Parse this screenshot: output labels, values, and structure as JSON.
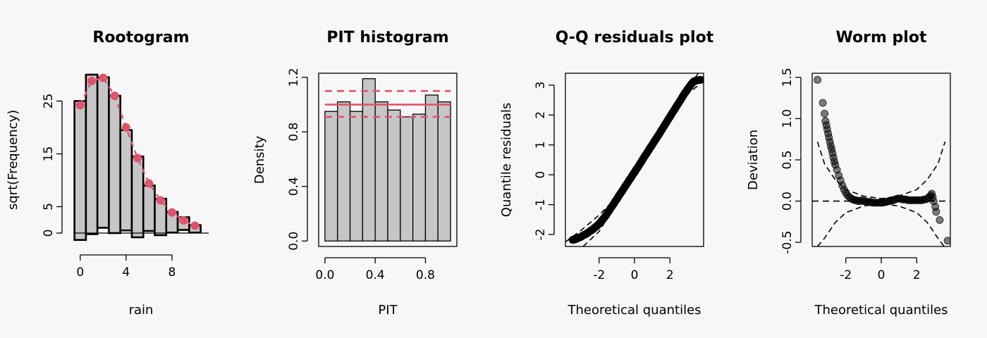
{
  "colors": {
    "background": "#f7f7f7",
    "bar_fill": "#c6c6c6",
    "accent": "#df536b",
    "points": "#000000"
  },
  "chart_data": [
    {
      "type": "bar",
      "title": "Rootogram",
      "xlabel": "rain",
      "ylabel": "sqrt(Frequency)",
      "xlim": [
        -0.6,
        11.2
      ],
      "ylim": [
        -2,
        30
      ],
      "xticks": [
        0,
        4,
        8
      ],
      "yticks": [
        0,
        5,
        15,
        25
      ],
      "x": [
        0,
        1,
        2,
        3,
        4,
        5,
        6,
        7,
        8,
        9,
        10
      ],
      "observed_sqrt": [
        25,
        30,
        29.5,
        26,
        19.5,
        14.5,
        9,
        6.5,
        4,
        3,
        1.5
      ],
      "expected_sqrt": [
        24.2,
        28.8,
        29.4,
        26,
        20,
        14.2,
        9.4,
        6.2,
        3.9,
        2.4,
        1.4
      ],
      "bottom": [
        -1.3,
        -0.2,
        1,
        0,
        0.5,
        -0.8,
        0.4,
        -0.4,
        0.1,
        0.6,
        0.1
      ]
    },
    {
      "type": "bar",
      "title": "PIT histogram",
      "xlabel": "PIT",
      "ylabel": "Density",
      "xlim": [
        -0.05,
        1.05
      ],
      "ylim": [
        -0.04,
        1.23
      ],
      "xticks": [
        "0.0",
        "0.4",
        "0.8"
      ],
      "xtick_values": [
        0,
        0.4,
        0.8
      ],
      "yticks": [
        "0.0",
        "0.4",
        "0.8",
        "1.2"
      ],
      "ytick_values": [
        0,
        0.4,
        0.8,
        1.2
      ],
      "bins": [
        0,
        0.1,
        0.2,
        0.3,
        0.4,
        0.5,
        0.6,
        0.7,
        0.8,
        0.9,
        1.0
      ],
      "density": [
        0.95,
        1.02,
        0.95,
        1.19,
        1.02,
        0.96,
        0.91,
        0.93,
        1.07,
        1.02
      ],
      "reference": 1.0,
      "interval": [
        0.91,
        1.1
      ]
    },
    {
      "type": "scatter",
      "title": "Q-Q residuals plot",
      "xlabel": "Theoretical quantiles",
      "ylabel": "Quantile residuals",
      "xlim": [
        -3.9,
        3.9
      ],
      "ylim": [
        -2.4,
        3.4
      ],
      "xticks": [
        -2,
        0,
        2
      ],
      "yticks": [
        -2,
        -1,
        0,
        1,
        2,
        3
      ],
      "points": [
        [
          -3.5,
          -2.18
        ],
        [
          -3.4,
          -2.17
        ],
        [
          -3.3,
          -2.15
        ],
        [
          -3.2,
          -2.12
        ],
        [
          -3.1,
          -2.1
        ],
        [
          -3.0,
          -2.07
        ],
        [
          -2.9,
          -2.03
        ],
        [
          -2.8,
          -2.0
        ],
        [
          -2.7,
          -1.97
        ],
        [
          -2.6,
          -1.93
        ],
        [
          -2.5,
          -1.88
        ],
        [
          -2.4,
          -1.85
        ],
        [
          -2.3,
          -1.8
        ],
        [
          -2.2,
          -1.75
        ],
        [
          -2.1,
          -1.7
        ],
        [
          -2.0,
          -1.64
        ],
        [
          -1.9,
          -1.58
        ],
        [
          -1.8,
          -1.5
        ],
        [
          -1.7,
          -1.43
        ],
        [
          -1.6,
          -1.35
        ],
        [
          -1.5,
          -1.26
        ],
        [
          -1.4,
          -1.17
        ],
        [
          -1.3,
          -1.08
        ],
        [
          -1.2,
          -1.0
        ],
        [
          -1.1,
          -0.9
        ],
        [
          -1.0,
          -0.82
        ],
        [
          -0.9,
          -0.72
        ],
        [
          -0.8,
          -0.63
        ],
        [
          -0.7,
          -0.55
        ],
        [
          -0.6,
          -0.46
        ],
        [
          -0.5,
          -0.36
        ],
        [
          -0.4,
          -0.28
        ],
        [
          -0.3,
          -0.18
        ],
        [
          -0.2,
          -0.1
        ],
        [
          -0.1,
          0.0
        ],
        [
          0.0,
          0.08
        ],
        [
          0.1,
          0.18
        ],
        [
          0.2,
          0.26
        ],
        [
          0.3,
          0.36
        ],
        [
          0.4,
          0.45
        ],
        [
          0.5,
          0.55
        ],
        [
          0.6,
          0.64
        ],
        [
          0.7,
          0.73
        ],
        [
          0.8,
          0.82
        ],
        [
          0.9,
          0.92
        ],
        [
          1.0,
          1.0
        ],
        [
          1.1,
          1.1
        ],
        [
          1.2,
          1.19
        ],
        [
          1.3,
          1.28
        ],
        [
          1.4,
          1.37
        ],
        [
          1.5,
          1.47
        ],
        [
          1.6,
          1.56
        ],
        [
          1.7,
          1.66
        ],
        [
          1.8,
          1.75
        ],
        [
          1.9,
          1.85
        ],
        [
          2.0,
          1.94
        ],
        [
          2.1,
          2.04
        ],
        [
          2.2,
          2.13
        ],
        [
          2.3,
          2.22
        ],
        [
          2.4,
          2.32
        ],
        [
          2.5,
          2.41
        ],
        [
          2.6,
          2.5
        ],
        [
          2.7,
          2.6
        ],
        [
          2.8,
          2.7
        ],
        [
          2.9,
          2.78
        ],
        [
          3.0,
          2.87
        ],
        [
          3.1,
          2.95
        ],
        [
          3.2,
          3.03
        ],
        [
          3.3,
          3.1
        ],
        [
          3.4,
          3.14
        ],
        [
          3.6,
          3.17
        ],
        [
          3.75,
          3.18
        ]
      ],
      "band_upper": [
        [
          -3.9,
          -2.25
        ],
        [
          -3.0,
          -1.85
        ],
        [
          -2.0,
          -1.35
        ],
        [
          -1.0,
          -0.75
        ],
        [
          0,
          0.1
        ],
        [
          1.0,
          1.0
        ],
        [
          2.0,
          1.95
        ],
        [
          3.0,
          2.9
        ],
        [
          3.6,
          3.4
        ]
      ],
      "band_lower": [
        [
          -2.9,
          -2.4
        ],
        [
          -2.0,
          -1.9
        ],
        [
          -1.0,
          -0.95
        ],
        [
          0,
          -0.05
        ],
        [
          1.0,
          0.85
        ],
        [
          2.0,
          1.8
        ],
        [
          3.0,
          2.7
        ],
        [
          3.5,
          2.95
        ],
        [
          3.7,
          2.95
        ]
      ]
    },
    {
      "type": "scatter",
      "title": "Worm plot",
      "xlabel": "Theoretical quantiles",
      "ylabel": "Deviation",
      "xlim": [
        -3.9,
        3.9
      ],
      "ylim": [
        -0.55,
        1.55
      ],
      "xticks": [
        -2,
        0,
        2
      ],
      "yticks": [
        "-0.5",
        "0.0",
        "0.5",
        "1.0",
        "1.5"
      ],
      "ytick_values": [
        -0.5,
        0,
        0.5,
        1.0,
        1.5
      ],
      "reference": 0,
      "points": [
        [
          -3.6,
          1.47
        ],
        [
          -3.3,
          1.19
        ],
        [
          -3.2,
          1.06
        ],
        [
          -3.15,
          0.97
        ],
        [
          -3.1,
          0.92
        ],
        [
          -3.05,
          0.87
        ],
        [
          -3.0,
          0.82
        ],
        [
          -2.95,
          0.77
        ],
        [
          -2.9,
          0.72
        ],
        [
          -2.85,
          0.67
        ],
        [
          -2.8,
          0.63
        ],
        [
          -2.75,
          0.58
        ],
        [
          -2.7,
          0.53
        ],
        [
          -2.65,
          0.48
        ],
        [
          -2.6,
          0.44
        ],
        [
          -2.5,
          0.38
        ],
        [
          -2.4,
          0.31
        ],
        [
          -2.3,
          0.25
        ],
        [
          -2.2,
          0.19
        ],
        [
          -2.1,
          0.14
        ],
        [
          -2.0,
          0.1
        ],
        [
          -1.9,
          0.07
        ],
        [
          -1.8,
          0.05
        ],
        [
          -1.7,
          0.03
        ],
        [
          -1.6,
          0.02
        ],
        [
          -1.5,
          0.01
        ],
        [
          -1.4,
          0.01
        ],
        [
          -1.3,
          0.0
        ],
        [
          -1.2,
          0.0
        ],
        [
          -1.1,
          0.01
        ],
        [
          -1.0,
          0.0
        ],
        [
          -0.9,
          0.0
        ],
        [
          -0.8,
          -0.01
        ],
        [
          -0.7,
          -0.01
        ],
        [
          -0.6,
          -0.01
        ],
        [
          -0.5,
          -0.02
        ],
        [
          -0.4,
          -0.02
        ],
        [
          -0.3,
          -0.02
        ],
        [
          -0.2,
          -0.02
        ],
        [
          -0.1,
          -0.02
        ],
        [
          0.0,
          -0.02
        ],
        [
          0.1,
          -0.02
        ],
        [
          0.2,
          -0.01
        ],
        [
          0.3,
          -0.01
        ],
        [
          0.4,
          0.0
        ],
        [
          0.5,
          0.0
        ],
        [
          0.6,
          0.01
        ],
        [
          0.7,
          0.01
        ],
        [
          0.8,
          0.02
        ],
        [
          0.9,
          0.03
        ],
        [
          1.0,
          0.03
        ],
        [
          1.1,
          0.03
        ],
        [
          1.2,
          0.02
        ],
        [
          1.3,
          0.02
        ],
        [
          1.4,
          0.02
        ],
        [
          1.5,
          0.01
        ],
        [
          1.6,
          0.01
        ],
        [
          1.7,
          0.01
        ],
        [
          1.8,
          0.01
        ],
        [
          1.9,
          0.01
        ],
        [
          2.0,
          0.01
        ],
        [
          2.1,
          0.01
        ],
        [
          2.2,
          0.01
        ],
        [
          2.3,
          0.01
        ],
        [
          2.4,
          0.02
        ],
        [
          2.5,
          0.02
        ],
        [
          2.6,
          0.03
        ],
        [
          2.7,
          0.05
        ],
        [
          2.8,
          0.07
        ],
        [
          2.85,
          0.09
        ],
        [
          2.9,
          0.05
        ],
        [
          2.95,
          0.0
        ],
        [
          3.05,
          -0.07
        ],
        [
          3.1,
          -0.13
        ],
        [
          3.3,
          -0.23
        ],
        [
          3.75,
          -0.48
        ]
      ],
      "band_upper": [
        [
          -3.6,
          0.72
        ],
        [
          -3.2,
          0.45
        ],
        [
          -2.6,
          0.26
        ],
        [
          -2.0,
          0.14
        ],
        [
          -1.0,
          0.06
        ],
        [
          0,
          0.03
        ],
        [
          1.0,
          0.06
        ],
        [
          2.0,
          0.14
        ],
        [
          2.6,
          0.26
        ],
        [
          3.2,
          0.45
        ],
        [
          3.6,
          0.72
        ]
      ],
      "band_lower": [
        [
          -3.6,
          -0.55
        ],
        [
          -3.2,
          -0.45
        ],
        [
          -2.6,
          -0.26
        ],
        [
          -2.0,
          -0.14
        ],
        [
          -1.0,
          -0.06
        ],
        [
          0,
          -0.03
        ],
        [
          1.0,
          -0.06
        ],
        [
          2.0,
          -0.14
        ],
        [
          2.6,
          -0.26
        ],
        [
          3.2,
          -0.45
        ],
        [
          3.55,
          -0.55
        ]
      ]
    }
  ]
}
